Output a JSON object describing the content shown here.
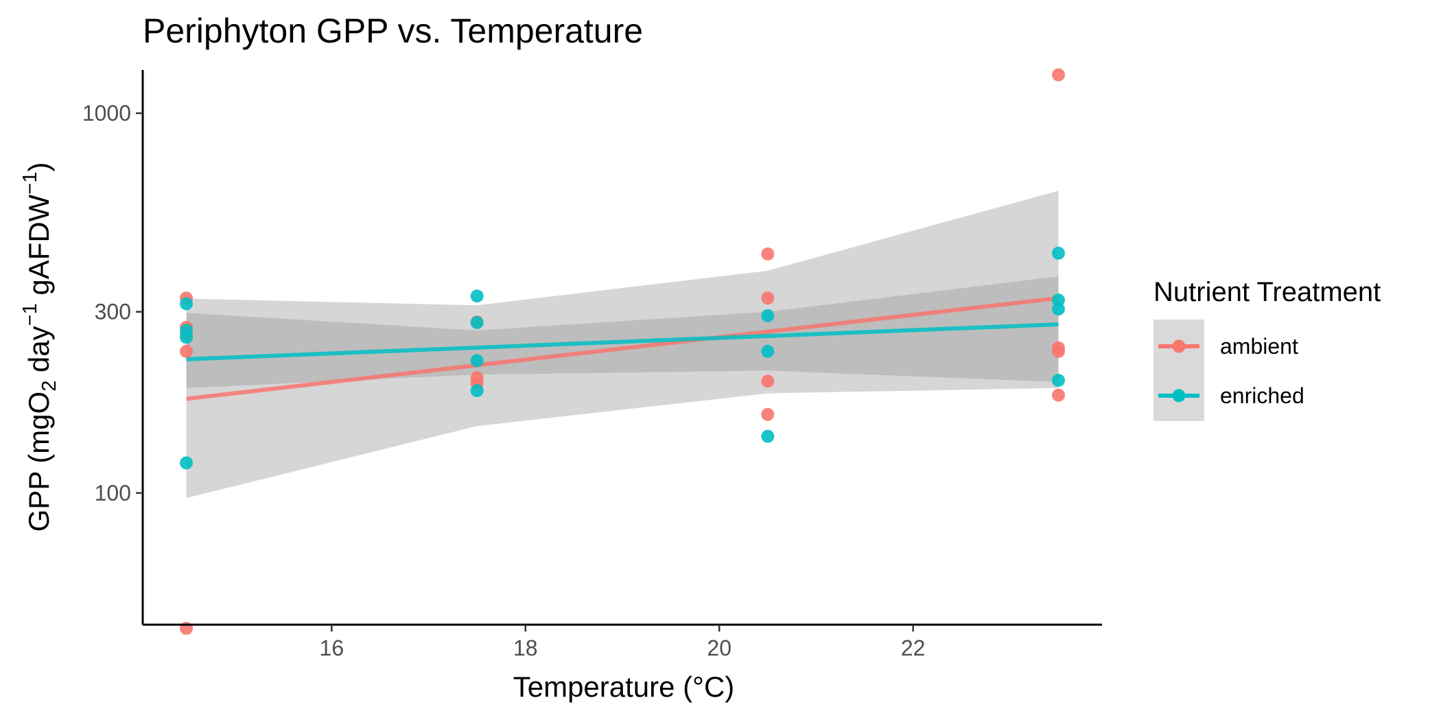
{
  "chart_data": {
    "type": "scatter",
    "title": "Periphyton GPP vs. Temperature",
    "xlabel": "Temperature (°C)",
    "ylabel": {
      "parts": [
        {
          "text": "GPP (mgO",
          "shift": "none"
        },
        {
          "text": "2",
          "shift": "sub"
        },
        {
          "text": " day",
          "shift": "none"
        },
        {
          "text": "−1",
          "shift": "super"
        },
        {
          "text": " gAFDW",
          "shift": "none"
        },
        {
          "text": "−1",
          "shift": "super"
        },
        {
          "text": ")",
          "shift": "none"
        }
      ]
    },
    "x_scale": "linear",
    "y_scale": "log10",
    "xlim": [
      14.05,
      23.95
    ],
    "ylim": [
      45,
      1300
    ],
    "x_ticks": [
      16,
      18,
      20,
      22
    ],
    "x_tick_labels": [
      "16",
      "18",
      "20",
      "22"
    ],
    "y_ticks": [
      100,
      300,
      1000
    ],
    "y_tick_labels": [
      "100",
      "300",
      "1000"
    ],
    "grid": false,
    "legend": {
      "title": "Nutrient Treatment",
      "position": "right",
      "entries": [
        "ambient",
        "enriched"
      ]
    },
    "series": [
      {
        "name": "ambient",
        "color": "#F8766D",
        "points": [
          {
            "x": 14.5,
            "y": 326
          },
          {
            "x": 14.5,
            "y": 273
          },
          {
            "x": 14.5,
            "y": 262
          },
          {
            "x": 14.5,
            "y": 236
          },
          {
            "x": 14.5,
            "y": 44
          },
          {
            "x": 17.5,
            "y": 282
          },
          {
            "x": 17.5,
            "y": 201
          },
          {
            "x": 17.5,
            "y": 194
          },
          {
            "x": 20.5,
            "y": 426
          },
          {
            "x": 20.5,
            "y": 326
          },
          {
            "x": 20.5,
            "y": 197
          },
          {
            "x": 20.5,
            "y": 161
          },
          {
            "x": 23.5,
            "y": 1262
          },
          {
            "x": 23.5,
            "y": 241
          },
          {
            "x": 23.5,
            "y": 236
          },
          {
            "x": 23.5,
            "y": 181
          }
        ],
        "fit": {
          "x": [
            14.5,
            23.5
          ],
          "y": [
            177,
            326
          ]
        }
      },
      {
        "name": "enriched",
        "color": "#00BFC4",
        "points": [
          {
            "x": 14.5,
            "y": 315
          },
          {
            "x": 14.5,
            "y": 268
          },
          {
            "x": 14.5,
            "y": 257
          },
          {
            "x": 14.5,
            "y": 120
          },
          {
            "x": 17.5,
            "y": 330
          },
          {
            "x": 17.5,
            "y": 281
          },
          {
            "x": 17.5,
            "y": 223
          },
          {
            "x": 17.5,
            "y": 186
          },
          {
            "x": 20.5,
            "y": 293
          },
          {
            "x": 20.5,
            "y": 236
          },
          {
            "x": 20.5,
            "y": 141
          },
          {
            "x": 23.5,
            "y": 428
          },
          {
            "x": 23.5,
            "y": 322
          },
          {
            "x": 23.5,
            "y": 305
          },
          {
            "x": 23.5,
            "y": 198
          }
        ],
        "fit": {
          "x": [
            14.5,
            23.5
          ],
          "y": [
            225,
            278
          ]
        }
      }
    ],
    "confidence_bands": [
      {
        "series": "ambient",
        "x": [
          14.5,
          17.5,
          20.5,
          23.5
        ],
        "lower": [
          97,
          150,
          183,
          189
        ],
        "upper": [
          325,
          312,
          385,
          625
        ]
      },
      {
        "series": "enriched",
        "x": [
          14.5,
          17.5,
          20.5,
          23.5
        ],
        "lower": [
          189,
          205,
          210,
          196
        ],
        "upper": [
          298,
          268,
          300,
          372
        ]
      }
    ]
  }
}
